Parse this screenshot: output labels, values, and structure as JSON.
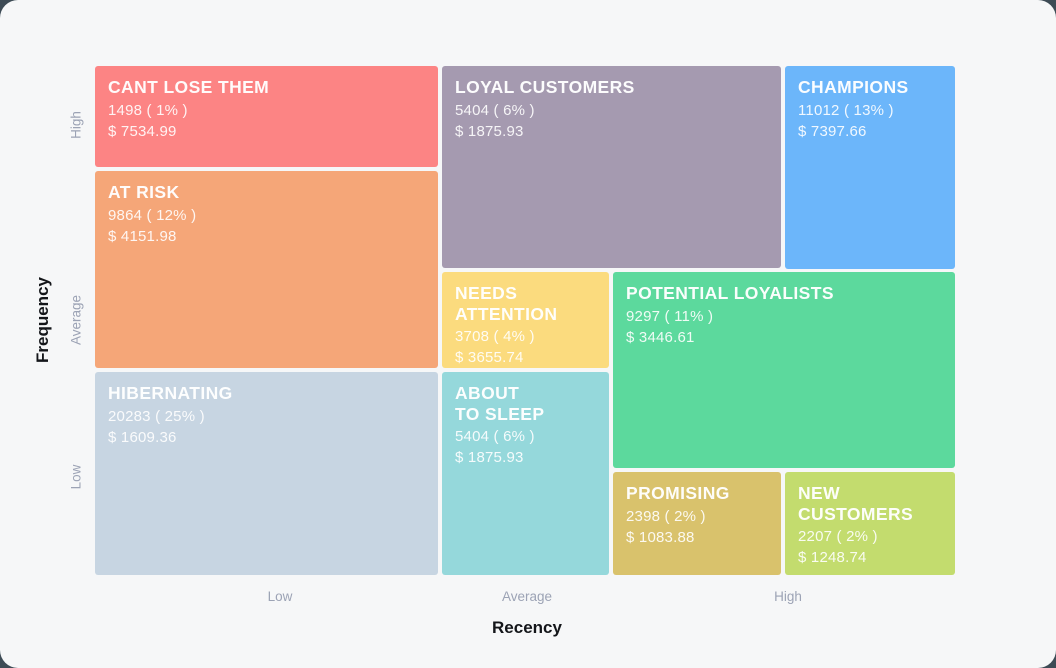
{
  "colors": {
    "page_background": "#3D4B55",
    "card_background": "#F6F7F8",
    "axis_title": "#14161A",
    "axis_tick": "#9CA3B5"
  },
  "chart_data": {
    "type": "treemap",
    "subtype": "rfm-segmentation-grid",
    "x_axis": {
      "title": "Recency",
      "ticks": [
        "Low",
        "Average",
        "High"
      ]
    },
    "y_axis": {
      "title": "Frequency",
      "ticks": [
        "High",
        "Average",
        "Low"
      ]
    },
    "legend": "none",
    "grid": "off",
    "segments": [
      {
        "label": "CANT LOSE THEM",
        "count": 1498,
        "percent": "1%",
        "monetary": 7534.99,
        "count_label": "1498 ( 1% )",
        "monetary_label": "$ 7534.99",
        "color": "#FC8484",
        "recency": "Low",
        "frequency": "High"
      },
      {
        "label": "LOYAL CUSTOMERS",
        "count": 5404,
        "percent": "6%",
        "monetary": 1875.93,
        "count_label": "5404 ( 6% )",
        "monetary_label": "$ 1875.93",
        "color": "#A59AB0",
        "recency": "Average",
        "frequency": "High"
      },
      {
        "label": "CHAMPIONS",
        "count": 11012,
        "percent": "13%",
        "monetary": 7397.66,
        "count_label": "11012 ( 13% )",
        "monetary_label": "$ 7397.66",
        "color": "#6CB6FA",
        "recency": "High",
        "frequency": "High"
      },
      {
        "label": "AT RISK",
        "count": 9864,
        "percent": "12%",
        "monetary": 4151.98,
        "count_label": "9864 ( 12% )",
        "monetary_label": "$ 4151.98",
        "color": "#F5A678",
        "recency": "Low",
        "frequency": "Average"
      },
      {
        "label": "NEEDS\nATTENTION",
        "count": 3708,
        "percent": "4%",
        "monetary": 3655.74,
        "count_label": "3708 ( 4% )",
        "monetary_label": "$ 3655.74",
        "color": "#FBDB7E",
        "recency": "Average",
        "frequency": "Average"
      },
      {
        "label": "POTENTIAL LOYALISTS",
        "count": 9297,
        "percent": "11%",
        "monetary": 3446.61,
        "count_label": "9297 ( 11% )",
        "monetary_label": "$ 3446.61",
        "color": "#5CD99D",
        "recency": "High",
        "frequency": "Average"
      },
      {
        "label": "HIBERNATING",
        "count": 20283,
        "percent": "25%",
        "monetary": 1609.36,
        "count_label": "20283 ( 25% )",
        "monetary_label": "$ 1609.36",
        "color": "#C7D5E2",
        "recency": "Low",
        "frequency": "Low"
      },
      {
        "label": "ABOUT\nTO SLEEP",
        "count": 5404,
        "percent": "6%",
        "monetary": 1875.93,
        "count_label": "5404 ( 6% )",
        "monetary_label": "$ 1875.93",
        "color": "#95D8DB",
        "recency": "Average",
        "frequency": "Low"
      },
      {
        "label": "PROMISING",
        "count": 2398,
        "percent": "2%",
        "monetary": 1083.88,
        "count_label": "2398 ( 2% )",
        "monetary_label": "$ 1083.88",
        "color": "#D9C26C",
        "recency": "High",
        "frequency": "Low"
      },
      {
        "label": "NEW\nCUSTOMERS",
        "count": 2207,
        "percent": "2%",
        "monetary": 1248.74,
        "count_label": "2207 ( 2% )",
        "monetary_label": "$ 1248.74",
        "color": "#C3DC6E",
        "recency": "High",
        "frequency": "Low"
      }
    ]
  }
}
